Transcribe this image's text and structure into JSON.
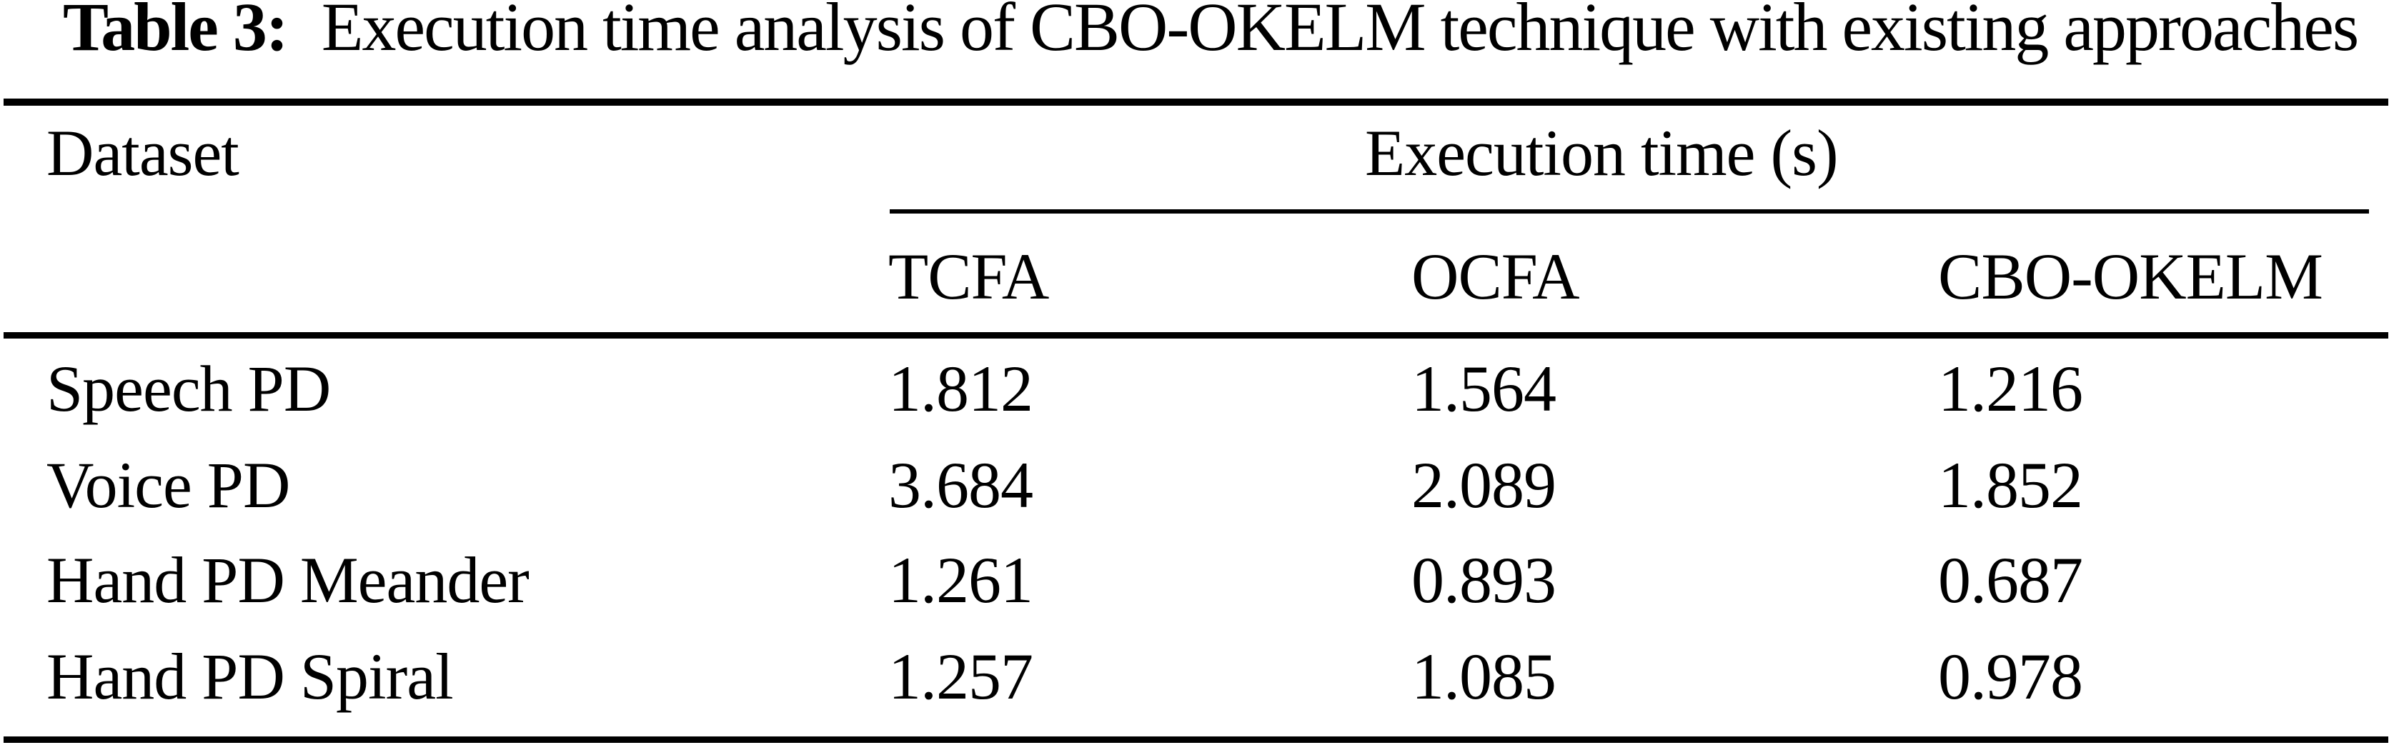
{
  "caption": {
    "label": "Table 3:",
    "text": "Execution time analysis of CBO-OKELM technique with existing approaches"
  },
  "table": {
    "dataset_header": "Dataset",
    "group_header": "Execution time (s)",
    "columns": [
      "TCFA",
      "OCFA",
      "CBO-OKELM"
    ],
    "rows": [
      {
        "dataset": "Speech PD",
        "tcfa": "1.812",
        "ocfa": "1.564",
        "cbo": "1.216"
      },
      {
        "dataset": "Voice PD",
        "tcfa": "3.684",
        "ocfa": "2.089",
        "cbo": "1.852"
      },
      {
        "dataset": "Hand PD Meander",
        "tcfa": "1.261",
        "ocfa": "0.893",
        "cbo": "0.687"
      },
      {
        "dataset": "Hand PD Spiral",
        "tcfa": "1.257",
        "ocfa": "1.085",
        "cbo": "0.978"
      }
    ]
  },
  "chart_data": {
    "type": "table",
    "title": "Table 3: Execution time analysis of CBO-OKELM technique with existing approaches",
    "column_group": "Execution time (s)",
    "categories": [
      "Speech PD",
      "Voice PD",
      "Hand PD Meander",
      "Hand PD Spiral"
    ],
    "series": [
      {
        "name": "TCFA",
        "values": [
          1.812,
          3.684,
          1.261,
          1.257
        ]
      },
      {
        "name": "OCFA",
        "values": [
          1.564,
          2.089,
          0.893,
          1.085
        ]
      },
      {
        "name": "CBO-OKELM",
        "values": [
          1.216,
          1.852,
          0.687,
          0.978
        ]
      }
    ]
  },
  "colors": {
    "ink": "#000000",
    "background": "#ffffff"
  }
}
